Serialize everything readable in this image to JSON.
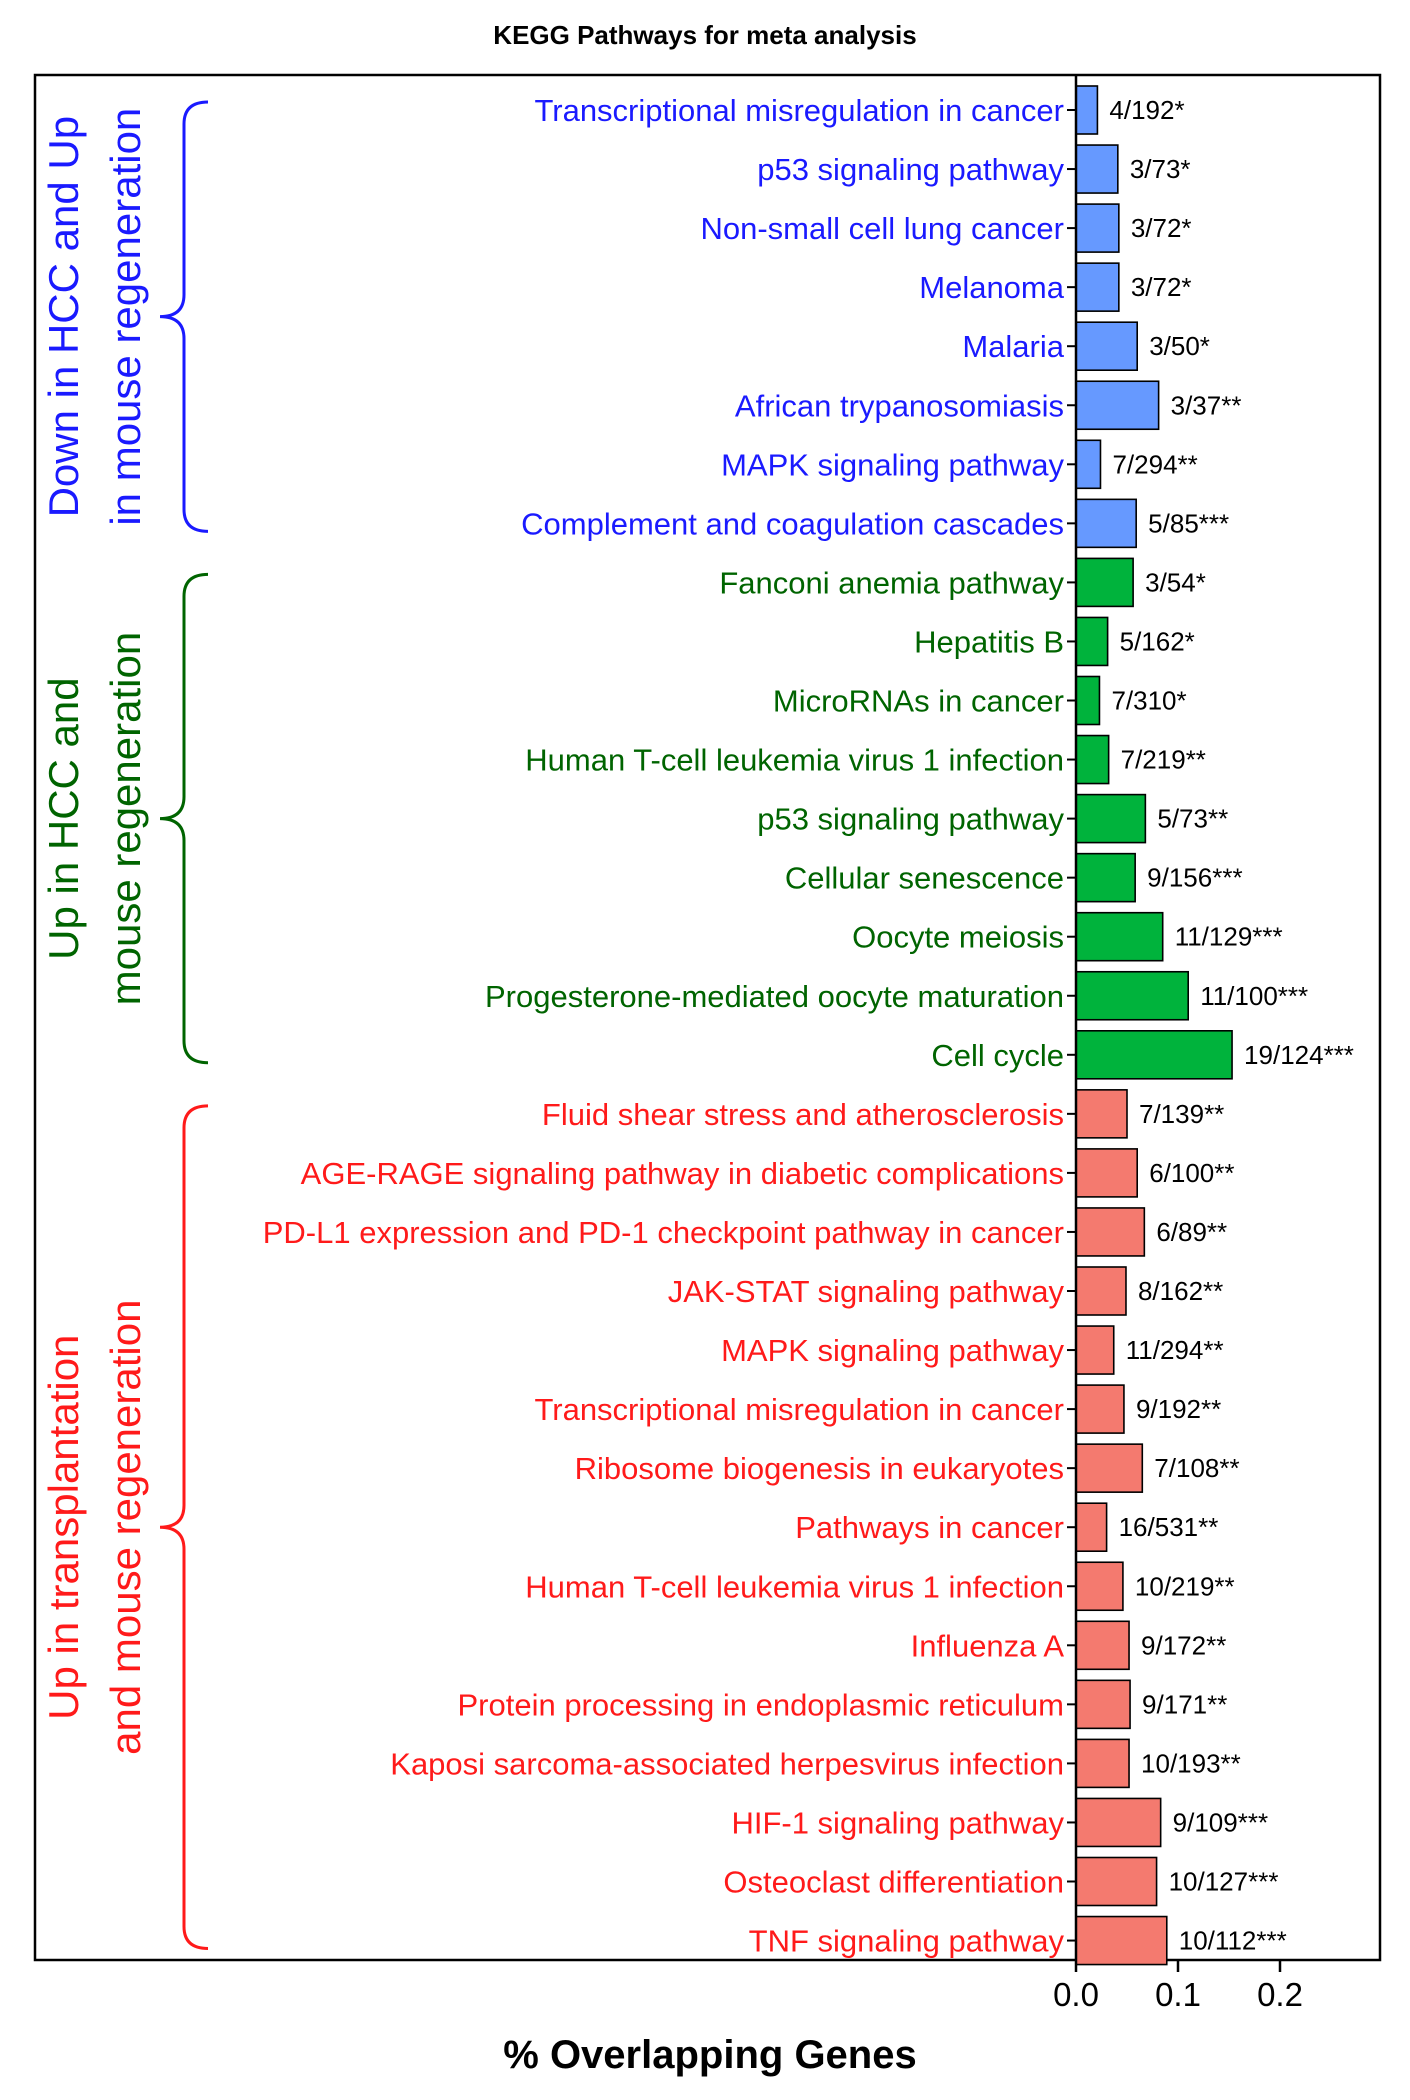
{
  "chart_data": {
    "type": "bar",
    "orientation": "horizontal",
    "title": "KEGG Pathways for meta analysis",
    "xlabel": "% Overlapping Genes",
    "xlim": [
      0,
      0.3
    ],
    "xticks": [
      "0.0",
      "0.1",
      "0.2"
    ],
    "xtick_values": [
      0,
      0.1,
      0.2
    ],
    "grid": false,
    "groups": [
      {
        "name_lines": [
          "Down in HCC and Up",
          "in mouse regeneration"
        ],
        "color": "#1a1aff",
        "bar_color": "#6699ff",
        "items": [
          {
            "category": "Transcriptional misregulation in cancer",
            "value": 0.021,
            "label": "4/192*"
          },
          {
            "category": "p53 signaling pathway",
            "value": 0.041,
            "label": "3/73*"
          },
          {
            "category": "Non-small cell lung cancer",
            "value": 0.042,
            "label": "3/72*"
          },
          {
            "category": "Melanoma",
            "value": 0.042,
            "label": "3/72*"
          },
          {
            "category": "Malaria",
            "value": 0.06,
            "label": "3/50*"
          },
          {
            "category": "African trypanosomiasis",
            "value": 0.081,
            "label": "3/37**"
          },
          {
            "category": "MAPK signaling pathway",
            "value": 0.024,
            "label": "7/294**"
          },
          {
            "category": "Complement and coagulation cascades",
            "value": 0.059,
            "label": "5/85***"
          }
        ]
      },
      {
        "name_lines": [
          "Up in HCC and",
          "mouse regeneration"
        ],
        "color": "#006400",
        "bar_color": "#00b33c",
        "items": [
          {
            "category": "Fanconi anemia pathway",
            "value": 0.056,
            "label": "3/54*"
          },
          {
            "category": "Hepatitis B",
            "value": 0.031,
            "label": "5/162*"
          },
          {
            "category": "MicroRNAs in cancer",
            "value": 0.023,
            "label": "7/310*"
          },
          {
            "category": "Human T-cell leukemia virus 1 infection",
            "value": 0.032,
            "label": "7/219**"
          },
          {
            "category": "p53 signaling pathway",
            "value": 0.068,
            "label": "5/73**"
          },
          {
            "category": "Cellular senescence",
            "value": 0.058,
            "label": "9/156***"
          },
          {
            "category": "Oocyte meiosis",
            "value": 0.085,
            "label": "11/129***"
          },
          {
            "category": "Progesterone-mediated oocyte maturation",
            "value": 0.11,
            "label": "11/100***"
          },
          {
            "category": "Cell cycle",
            "value": 0.153,
            "label": "19/124***"
          }
        ]
      },
      {
        "name_lines": [
          "Up in transplantation",
          "and mouse regeneration"
        ],
        "color": "#ff1a1a",
        "bar_color": "#f47a6f",
        "items": [
          {
            "category": "Fluid shear stress and atherosclerosis",
            "value": 0.05,
            "label": "7/139**"
          },
          {
            "category": "AGE-RAGE signaling pathway in diabetic complications",
            "value": 0.06,
            "label": "6/100**"
          },
          {
            "category": "PD-L1 expression and PD-1 checkpoint pathway in cancer",
            "value": 0.067,
            "label": "6/89**"
          },
          {
            "category": "JAK-STAT signaling pathway",
            "value": 0.049,
            "label": "8/162**"
          },
          {
            "category": "MAPK signaling pathway",
            "value": 0.037,
            "label": "11/294**"
          },
          {
            "category": "Transcriptional misregulation in cancer",
            "value": 0.047,
            "label": "9/192**"
          },
          {
            "category": "Ribosome biogenesis in eukaryotes",
            "value": 0.065,
            "label": "7/108**"
          },
          {
            "category": "Pathways in cancer",
            "value": 0.03,
            "label": "16/531**"
          },
          {
            "category": "Human T-cell leukemia virus 1 infection",
            "value": 0.046,
            "label": "10/219**"
          },
          {
            "category": "Influenza A",
            "value": 0.052,
            "label": "9/172**"
          },
          {
            "category": "Protein processing in endoplasmic reticulum",
            "value": 0.053,
            "label": "9/171**"
          },
          {
            "category": "Kaposi sarcoma-associated herpesvirus infection",
            "value": 0.052,
            "label": "10/193**"
          },
          {
            "category": "HIF-1 signaling pathway",
            "value": 0.083,
            "label": "9/109***"
          },
          {
            "category": "Osteoclast differentiation",
            "value": 0.079,
            "label": "10/127***"
          },
          {
            "category": "TNF signaling pathway",
            "value": 0.089,
            "label": "10/112***"
          }
        ]
      }
    ]
  }
}
